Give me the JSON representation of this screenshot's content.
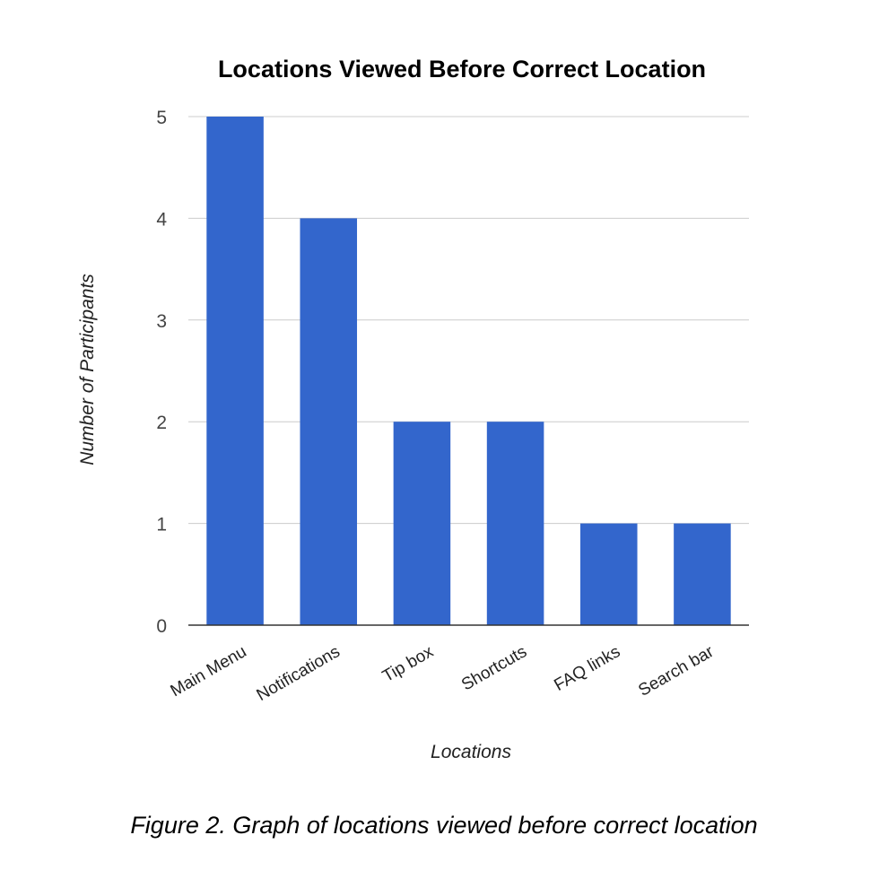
{
  "figure": {
    "caption": "Figure 2. Graph of locations viewed before correct location"
  },
  "chart_data": {
    "type": "bar",
    "title": "Locations Viewed Before Correct Location",
    "xlabel": "Locations",
    "ylabel": "Number of Participants",
    "categories": [
      "Main Menu",
      "Notifications",
      "Tip box",
      "Shortcuts",
      "FAQ links",
      "Search bar"
    ],
    "values": [
      5,
      4,
      2,
      2,
      1,
      1
    ],
    "ylim": [
      0,
      5
    ],
    "yticks": [
      0,
      1,
      2,
      3,
      4,
      5
    ],
    "grid": true,
    "legend": "none",
    "bar_color": "#3366cc",
    "grid_color": "#cccccc",
    "axis_color": "#333333"
  }
}
